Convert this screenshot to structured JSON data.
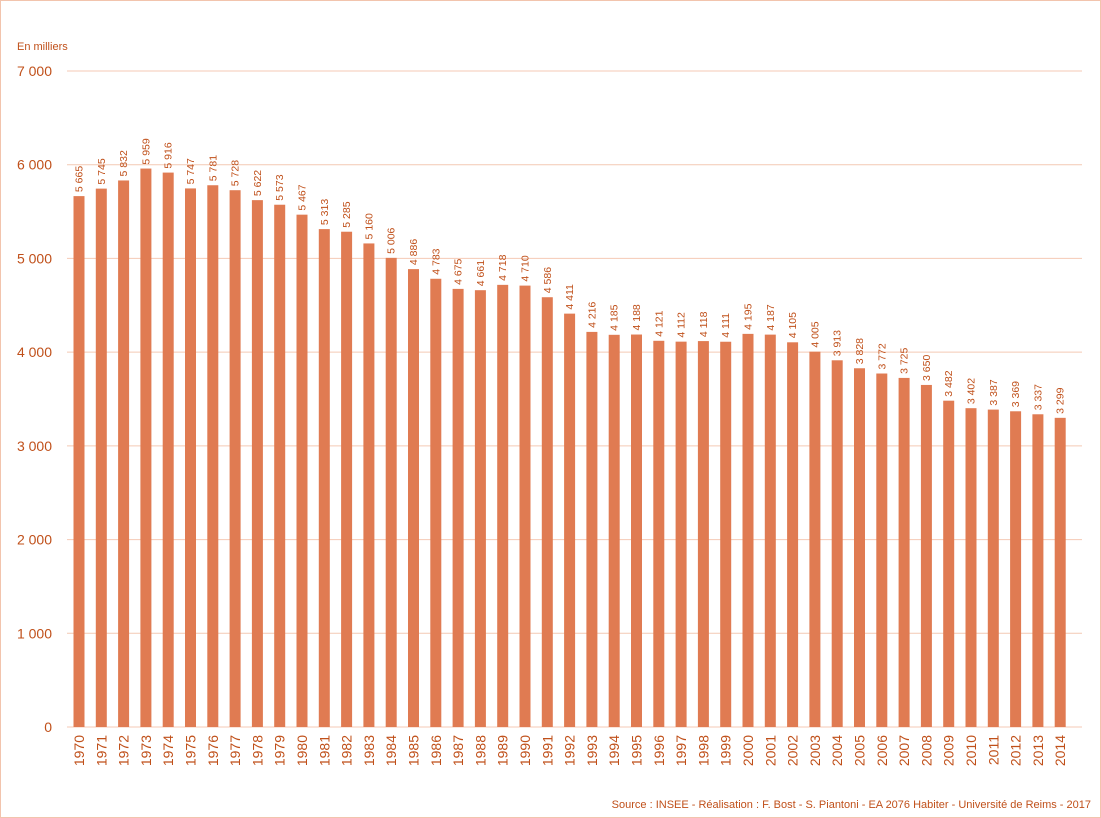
{
  "chart_data": {
    "type": "bar",
    "unit_label": "En milliers",
    "source": "Source : INSEE - Réalisation : F. Bost - S. Piantoni - EA 2076 Habiter - Université de Reims - 2017",
    "ylim": [
      0,
      7000
    ],
    "yticks": [
      0,
      1000,
      2000,
      3000,
      4000,
      5000,
      6000,
      7000
    ],
    "ytick_labels": [
      "0",
      "1 000",
      "2 000",
      "3 000",
      "4 000",
      "5 000",
      "6 000",
      "7 000"
    ],
    "grid": true,
    "legend": "none",
    "categories": [
      "1970",
      "1971",
      "1972",
      "1973",
      "1974",
      "1975",
      "1976",
      "1977",
      "1978",
      "1979",
      "1980",
      "1981",
      "1982",
      "1983",
      "1984",
      "1985",
      "1986",
      "1987",
      "1988",
      "1989",
      "1990",
      "1991",
      "1992",
      "1993",
      "1994",
      "1995",
      "1996",
      "1997",
      "1998",
      "1999",
      "2000",
      "2001",
      "2002",
      "2003",
      "2004",
      "2005",
      "2006",
      "2007",
      "2008",
      "2009",
      "2010",
      "2011",
      "2012",
      "2013",
      "2014"
    ],
    "values": [
      5665,
      5745,
      5832,
      5959,
      5916,
      5747,
      5781,
      5728,
      5622,
      5573,
      5467,
      5313,
      5285,
      5160,
      5006,
      4886,
      4783,
      4675,
      4661,
      4718,
      4710,
      4586,
      4411,
      4216,
      4185,
      4188,
      4121,
      4112,
      4118,
      4111,
      4195,
      4187,
      4105,
      4005,
      3913,
      3828,
      3772,
      3725,
      3650,
      3482,
      3402,
      3387,
      3369,
      3337,
      3299
    ],
    "value_labels": [
      "5 665",
      "5 745",
      "5 832",
      "5 959",
      "5 916",
      "5 747",
      "5 781",
      "5 728",
      "5 622",
      "5 573",
      "5 467",
      "5 313",
      "5 285",
      "5 160",
      "5 006",
      "4 886",
      "4 783",
      "4 675",
      "4 661",
      "4 718",
      "4 710",
      "4 586",
      "4 411",
      "4 216",
      "4 185",
      "4 188",
      "4 121",
      "4 112",
      "4 118",
      "4 111",
      "4 195",
      "4 187",
      "4 105",
      "4 005",
      "3 913",
      "3 828",
      "3 772",
      "3 725",
      "3 650",
      "3 482",
      "3 402",
      "3 387",
      "3 369",
      "3 337",
      "3 299"
    ],
    "colors": {
      "bar": "#e07b52",
      "text": "#c0501a",
      "grid": "#f4c9b4",
      "frame": "#f2c4ad"
    }
  }
}
